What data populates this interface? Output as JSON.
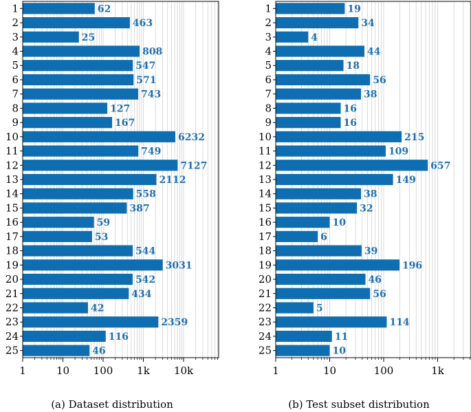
{
  "chart_data": [
    {
      "type": "bar",
      "orientation": "horizontal",
      "x_scale": "log",
      "xlim": [
        1,
        50000
      ],
      "x_tick_labels": [
        "1",
        "10",
        "100",
        "1k",
        "10k"
      ],
      "x_tick_values": [
        1,
        10,
        100,
        1000,
        10000
      ],
      "categories": [
        "1",
        "2",
        "3",
        "4",
        "5",
        "6",
        "7",
        "8",
        "9",
        "10",
        "11",
        "12",
        "13",
        "14",
        "15",
        "16",
        "17",
        "18",
        "19",
        "20",
        "21",
        "22",
        "23",
        "24",
        "25"
      ],
      "values": [
        62,
        463,
        25,
        808,
        547,
        571,
        743,
        127,
        167,
        6232,
        749,
        7127,
        2112,
        558,
        387,
        59,
        53,
        544,
        3031,
        542,
        434,
        42,
        2359,
        116,
        46
      ],
      "caption": "(a) Dataset distribution",
      "bar_color": "#0e6eb1",
      "label_color": "#1f6fb0",
      "grid": "vertical"
    },
    {
      "type": "bar",
      "orientation": "horizontal",
      "x_scale": "log",
      "xlim": [
        1,
        5000
      ],
      "x_tick_labels": [
        "1",
        "10",
        "100",
        "1k"
      ],
      "x_tick_values": [
        1,
        10,
        100,
        1000
      ],
      "categories": [
        "1",
        "2",
        "3",
        "4",
        "5",
        "6",
        "7",
        "8",
        "9",
        "10",
        "11",
        "12",
        "13",
        "14",
        "15",
        "16",
        "17",
        "18",
        "19",
        "20",
        "21",
        "22",
        "23",
        "24",
        "25"
      ],
      "values": [
        19,
        34,
        4,
        44,
        18,
        56,
        38,
        16,
        16,
        215,
        109,
        657,
        149,
        38,
        32,
        10,
        6,
        39,
        196,
        46,
        56,
        5,
        114,
        11,
        10
      ],
      "caption": "(b) Test subset distribution",
      "bar_color": "#0e6eb1",
      "label_color": "#1f6fb0",
      "grid": "vertical"
    }
  ]
}
